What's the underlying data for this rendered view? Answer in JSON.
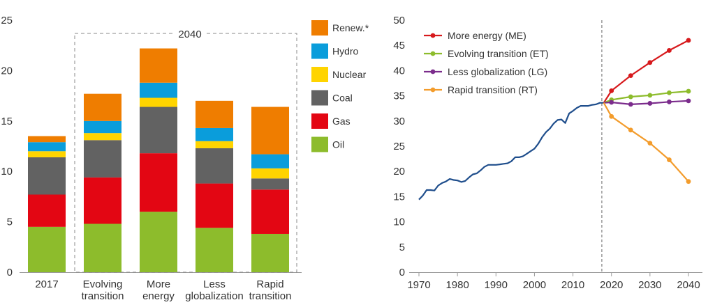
{
  "chart_data": [
    {
      "type": "bar",
      "stacked": true,
      "categories": [
        [
          "2017"
        ],
        [
          "Evolving",
          "transition"
        ],
        [
          "More",
          "energy"
        ],
        [
          "Less",
          "globalization"
        ],
        [
          "Rapid",
          "transition"
        ]
      ],
      "group_label": "2040",
      "ylim": [
        0,
        25
      ],
      "yticks": [
        0,
        5,
        10,
        15,
        20,
        25
      ],
      "series": [
        {
          "name": "Oil",
          "color": "#8dbc2c",
          "values": [
            4.5,
            4.8,
            6.0,
            4.4,
            3.8
          ]
        },
        {
          "name": "Gas",
          "color": "#e30613",
          "values": [
            3.2,
            4.6,
            5.8,
            4.4,
            4.4
          ]
        },
        {
          "name": "Coal",
          "color": "#626262",
          "values": [
            3.7,
            3.7,
            4.6,
            3.5,
            1.1
          ]
        },
        {
          "name": "Nuclear",
          "color": "#ffd400",
          "values": [
            0.6,
            0.7,
            0.9,
            0.7,
            1.0
          ]
        },
        {
          "name": "Hydro",
          "color": "#0a9ddb",
          "values": [
            0.9,
            1.2,
            1.5,
            1.3,
            1.4
          ]
        },
        {
          "name": "Renew.*",
          "color": "#ef7d00",
          "values": [
            0.6,
            2.7,
            3.4,
            2.7,
            4.7
          ]
        }
      ],
      "legend_order": [
        "Renew.*",
        "Hydro",
        "Nuclear",
        "Coal",
        "Gas",
        "Oil"
      ]
    },
    {
      "type": "line",
      "xlim": [
        1970,
        2040
      ],
      "xticks": [
        1970,
        1980,
        1990,
        2000,
        2010,
        2020,
        2030,
        2040
      ],
      "ylim": [
        0,
        50
      ],
      "yticks": [
        0,
        5,
        10,
        15,
        20,
        25,
        30,
        35,
        40,
        45,
        50
      ],
      "divider_x": 2017.5,
      "history": {
        "color": "#1f4e8c",
        "x": [
          1970,
          1971,
          1972,
          1973,
          1974,
          1975,
          1976,
          1977,
          1978,
          1979,
          1980,
          1981,
          1982,
          1983,
          1984,
          1985,
          1986,
          1987,
          1988,
          1989,
          1990,
          1991,
          1992,
          1993,
          1994,
          1995,
          1996,
          1997,
          1998,
          1999,
          2000,
          2001,
          2002,
          2003,
          2004,
          2005,
          2006,
          2007,
          2008,
          2009,
          2010,
          2011,
          2012,
          2013,
          2014,
          2015,
          2016,
          2017,
          2018
        ],
        "y": [
          14.4,
          15.2,
          16.3,
          16.3,
          16.2,
          17.2,
          17.7,
          18.0,
          18.5,
          18.3,
          18.2,
          17.9,
          18.1,
          18.8,
          19.4,
          19.6,
          20.2,
          20.9,
          21.3,
          21.3,
          21.3,
          21.4,
          21.5,
          21.6,
          22.0,
          22.8,
          22.8,
          23.0,
          23.5,
          24.0,
          24.5,
          25.5,
          26.8,
          27.8,
          28.5,
          29.5,
          30.2,
          30.3,
          29.6,
          31.5,
          32.0,
          32.6,
          33.0,
          33.0,
          33.0,
          33.2,
          33.3,
          33.6,
          33.6
        ]
      },
      "series": [
        {
          "name": "More energy (ME)",
          "color": "#d7191c",
          "x": [
            2018,
            2020,
            2025,
            2030,
            2035,
            2040
          ],
          "y": [
            33.6,
            36.0,
            39.0,
            41.6,
            44.0,
            46.0
          ]
        },
        {
          "name": "Evolving transition (ET)",
          "color": "#8dbc2c",
          "x": [
            2018,
            2020,
            2025,
            2030,
            2035,
            2040
          ],
          "y": [
            33.6,
            34.2,
            34.8,
            35.1,
            35.6,
            35.9
          ]
        },
        {
          "name": "Less globalization (LG)",
          "color": "#7b2c8c",
          "x": [
            2018,
            2020,
            2025,
            2030,
            2035,
            2040
          ],
          "y": [
            33.6,
            33.7,
            33.3,
            33.5,
            33.8,
            34.0
          ]
        },
        {
          "name": "Rapid transition (RT)",
          "color": "#f39c2c",
          "x": [
            2018,
            2020,
            2025,
            2030,
            2035,
            2040
          ],
          "y": [
            33.6,
            30.9,
            28.2,
            25.6,
            22.3,
            18.0
          ]
        }
      ]
    }
  ]
}
